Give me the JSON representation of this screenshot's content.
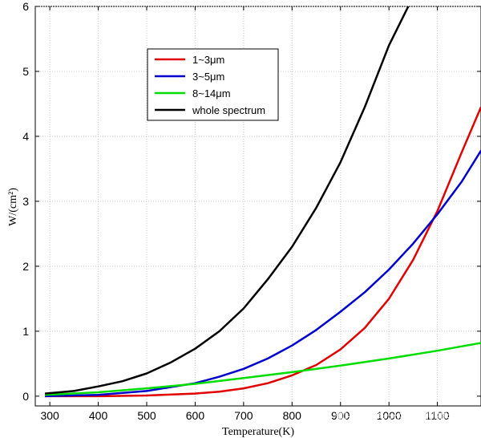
{
  "chart_data": {
    "type": "line",
    "xlabel": "Temperature(K)",
    "ylabel": "W/(cm²)",
    "xlim": [
      270,
      1190
    ],
    "ylim": [
      -0.15,
      6
    ],
    "x_ticks": [
      "300",
      "400",
      "500",
      "600",
      "700",
      "800",
      "900",
      "1000",
      "1100"
    ],
    "y_ticks": [
      "0",
      "1",
      "2",
      "3",
      "4",
      "5",
      "6"
    ],
    "grid": true,
    "legend_position": "top-left",
    "series": [
      {
        "name": "1~3μm",
        "color": "#e00000",
        "x": [
          290,
          400,
          500,
          600,
          650,
          700,
          750,
          800,
          850,
          900,
          950,
          1000,
          1050,
          1100,
          1150,
          1190
        ],
        "y": [
          0.0,
          0.0,
          0.01,
          0.04,
          0.07,
          0.12,
          0.2,
          0.32,
          0.48,
          0.72,
          1.05,
          1.5,
          2.1,
          2.85,
          3.75,
          4.45
        ]
      },
      {
        "name": "3~5μm",
        "color": "#0000cc",
        "x": [
          290,
          400,
          500,
          600,
          650,
          700,
          750,
          800,
          850,
          900,
          950,
          1000,
          1050,
          1100,
          1150,
          1190
        ],
        "y": [
          0.0,
          0.02,
          0.08,
          0.2,
          0.3,
          0.42,
          0.58,
          0.78,
          1.02,
          1.3,
          1.6,
          1.95,
          2.35,
          2.8,
          3.3,
          3.78
        ]
      },
      {
        "name": "8~14μm",
        "color": "#00dd00",
        "x": [
          290,
          400,
          500,
          600,
          700,
          800,
          900,
          1000,
          1100,
          1190
        ],
        "y": [
          0.02,
          0.06,
          0.12,
          0.19,
          0.28,
          0.37,
          0.47,
          0.58,
          0.7,
          0.82
        ]
      },
      {
        "name": "whole spectrum",
        "color": "#000000",
        "x": [
          290,
          350,
          400,
          450,
          500,
          550,
          600,
          650,
          700,
          750,
          800,
          850,
          900,
          950,
          1000,
          1040
        ],
        "y": [
          0.04,
          0.08,
          0.15,
          0.23,
          0.35,
          0.52,
          0.73,
          1.0,
          1.35,
          1.8,
          2.3,
          2.9,
          3.6,
          4.45,
          5.4,
          6.0
        ]
      }
    ]
  },
  "watermark": "知乎 @多元宇宙观察者"
}
